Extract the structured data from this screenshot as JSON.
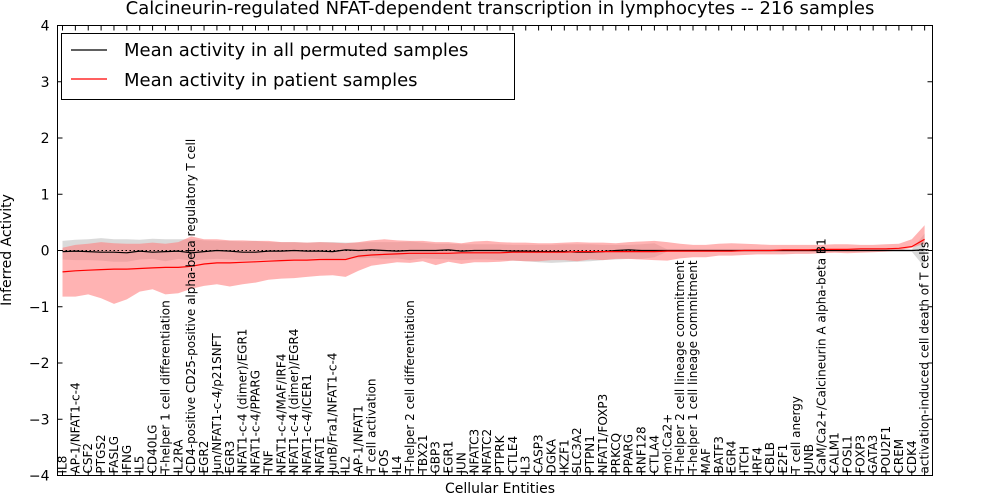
{
  "chart_data": {
    "type": "line",
    "title": "Calcineurin-regulated NFAT-dependent transcription in lymphocytes -- 216 samples",
    "xlabel": "Cellular Entities",
    "ylabel": "Inferred Activity",
    "ylim": [
      -4,
      4
    ],
    "yticks": [
      "4",
      "3",
      "2",
      "1",
      "0",
      "−1",
      "−2",
      "−3",
      "−4"
    ],
    "legend_position": "top-left",
    "colors": {
      "permuted": "#000000",
      "patient": "#ff0000",
      "permuted_band": "#bbbbbb",
      "patient_band": "#ff8080"
    },
    "categories": [
      "IL8",
      "AP-1/NFAT1-c-4",
      "CSF2",
      "PTGS2",
      "FASLG",
      "IFNG",
      "IL5",
      "CD40LG",
      "T-helper 1 cell differentiation",
      "IL2RA",
      "CD4-positive CD25-positive alpha-beta regulatory T cell",
      "EGR2",
      "Jun/NFAT1-c-4/p21SNFT",
      "EGR3",
      "NFAT1-c-4 (dimer)/EGR1",
      "NFAT1-c-4/PPARG",
      "TNF",
      "NFAT1-c-4/MAF/IRF4",
      "NFAT1-c-4 (dimer)/EGR4",
      "NFAT1-c-4/ICER1",
      "NFAT1",
      "JunB/Fra1/NFAT1-c-4",
      "IL2",
      "AP-1/NFAT1",
      "T cell activation",
      "FOS",
      "IL4",
      "T-helper 2 cell differentiation",
      "TBX21",
      "GBP3",
      "EGR1",
      "JUN",
      "NFATC3",
      "NFATC2",
      "PTPRK",
      "CTLE4",
      "IL3",
      "CASP3",
      "DGKA",
      "IKZF1",
      "SLC3A2",
      "PTPN1",
      "NFAT1/FOXP3",
      "PRKCQ",
      "PPARG",
      "RNF128",
      "CTLA4",
      "mol:Ca2+",
      "T-helper 2 cell lineage commitment",
      "T-helper 1 cell lineage commitment",
      "MAF",
      "BATF3",
      "EGR4",
      "ITCH",
      "IRF4",
      "CBLB",
      "E2F1",
      "T cell anergy",
      "JUNB",
      "CaM/Ca2+/Calcineurin A alpha-beta B1",
      "CALM1",
      "FOSL1",
      "FOXP3",
      "GATA3",
      "POU2F1",
      "CREM",
      "CDK4",
      "activation-induced cell death of T cells"
    ],
    "series": [
      {
        "name": "Mean activity in all permuted samples",
        "values": [
          -0.02,
          -0.01,
          -0.02,
          -0.03,
          -0.03,
          -0.04,
          -0.01,
          -0.03,
          -0.02,
          -0.01,
          -0.04,
          -0.02,
          0.0,
          -0.01,
          -0.03,
          -0.03,
          -0.01,
          -0.01,
          0.0,
          -0.01,
          -0.01,
          -0.02,
          0.01,
          0.0,
          0.01,
          0.0,
          -0.01,
          0.0,
          0.0,
          0.0,
          0.01,
          -0.01,
          0.0,
          0.0,
          0.0,
          -0.01,
          -0.01,
          -0.02,
          -0.02,
          -0.02,
          -0.03,
          -0.03,
          -0.02,
          0.0,
          0.01,
          0.0,
          0.0,
          0.0,
          0.0,
          0.0,
          0.0,
          0.0,
          0.0,
          0.0,
          0.0,
          0.0,
          0.0,
          0.0,
          0.0,
          0.0,
          0.0,
          0.0,
          0.0,
          0.0,
          0.0,
          0.0,
          0.0,
          0.01
        ],
        "lower": [
          -0.16,
          -0.17,
          -0.17,
          -0.18,
          -0.2,
          -0.2,
          -0.16,
          -0.15,
          -0.19,
          -0.15,
          -0.18,
          -0.16,
          -0.15,
          -0.16,
          -0.18,
          -0.17,
          -0.16,
          -0.17,
          -0.15,
          -0.15,
          -0.14,
          -0.16,
          -0.14,
          -0.14,
          -0.13,
          -0.15,
          -0.14,
          -0.17,
          -0.14,
          -0.15,
          -0.16,
          -0.17,
          -0.16,
          -0.16,
          -0.17,
          -0.18,
          -0.19,
          -0.21,
          -0.22,
          -0.21,
          -0.2,
          -0.19,
          -0.17,
          -0.16,
          -0.15,
          -0.15,
          -0.12,
          -0.02,
          -0.02,
          -0.02,
          -0.02,
          -0.02,
          -0.02,
          -0.02,
          -0.02,
          -0.02,
          -0.02,
          -0.02,
          -0.02,
          -0.02,
          -0.02,
          -0.02,
          -0.02,
          -0.02,
          -0.02,
          -0.02,
          -0.02,
          -0.3
        ],
        "upper": [
          0.17,
          0.19,
          0.2,
          0.22,
          0.2,
          0.2,
          0.19,
          0.21,
          0.2,
          0.2,
          0.2,
          0.18,
          0.17,
          0.17,
          0.16,
          0.17,
          0.15,
          0.15,
          0.15,
          0.14,
          0.15,
          0.15,
          0.14,
          0.14,
          0.15,
          0.15,
          0.15,
          0.16,
          0.14,
          0.12,
          0.12,
          0.11,
          0.11,
          0.11,
          0.11,
          0.1,
          0.1,
          0.1,
          0.1,
          0.11,
          0.11,
          0.11,
          0.1,
          0.1,
          0.1,
          0.11,
          0.13,
          0.02,
          0.02,
          0.02,
          0.02,
          0.02,
          0.02,
          0.02,
          0.02,
          0.02,
          0.02,
          0.02,
          0.02,
          0.02,
          0.02,
          0.02,
          0.02,
          0.02,
          0.02,
          0.02,
          0.02,
          0.3
        ]
      },
      {
        "name": "Mean activity in patient samples",
        "values": [
          -0.38,
          -0.36,
          -0.35,
          -0.34,
          -0.33,
          -0.33,
          -0.32,
          -0.31,
          -0.3,
          -0.3,
          -0.28,
          -0.24,
          -0.22,
          -0.22,
          -0.21,
          -0.2,
          -0.19,
          -0.18,
          -0.17,
          -0.17,
          -0.16,
          -0.16,
          -0.16,
          -0.1,
          -0.08,
          -0.07,
          -0.06,
          -0.05,
          -0.05,
          -0.05,
          -0.05,
          -0.04,
          -0.04,
          -0.04,
          -0.04,
          -0.03,
          -0.03,
          -0.03,
          -0.03,
          -0.03,
          -0.02,
          -0.02,
          -0.02,
          -0.02,
          -0.02,
          -0.02,
          -0.02,
          -0.01,
          -0.01,
          -0.01,
          -0.01,
          -0.01,
          -0.01,
          0.0,
          0.0,
          0.0,
          0.01,
          0.01,
          0.01,
          0.02,
          0.02,
          0.02,
          0.03,
          0.03,
          0.03,
          0.04,
          0.07,
          0.2
        ],
        "lower": [
          -0.82,
          -0.82,
          -0.78,
          -0.85,
          -0.95,
          -0.87,
          -0.73,
          -0.69,
          -0.78,
          -0.76,
          -0.68,
          -0.63,
          -0.6,
          -0.64,
          -0.6,
          -0.57,
          -0.52,
          -0.5,
          -0.49,
          -0.47,
          -0.45,
          -0.44,
          -0.47,
          -0.36,
          -0.27,
          -0.24,
          -0.21,
          -0.22,
          -0.19,
          -0.26,
          -0.2,
          -0.24,
          -0.21,
          -0.21,
          -0.2,
          -0.18,
          -0.19,
          -0.19,
          -0.17,
          -0.17,
          -0.19,
          -0.16,
          -0.17,
          -0.15,
          -0.15,
          -0.16,
          -0.17,
          -0.18,
          -0.14,
          -0.12,
          -0.12,
          -0.09,
          -0.09,
          -0.08,
          -0.07,
          -0.07,
          -0.07,
          -0.06,
          -0.06,
          -0.05,
          -0.04,
          -0.05,
          -0.04,
          -0.03,
          -0.02,
          0.0,
          0.05,
          0.12
        ],
        "upper": [
          0.05,
          0.1,
          0.12,
          0.15,
          0.13,
          0.12,
          0.12,
          0.14,
          0.12,
          0.15,
          0.25,
          0.2,
          0.2,
          0.18,
          0.18,
          0.17,
          0.17,
          0.15,
          0.15,
          0.14,
          0.15,
          0.14,
          0.13,
          0.15,
          0.18,
          0.2,
          0.18,
          0.17,
          0.17,
          0.15,
          0.15,
          0.13,
          0.16,
          0.17,
          0.15,
          0.14,
          0.14,
          0.13,
          0.13,
          0.14,
          0.15,
          0.14,
          0.14,
          0.13,
          0.15,
          0.16,
          0.17,
          0.15,
          0.12,
          0.1,
          0.1,
          0.12,
          0.13,
          0.12,
          0.11,
          0.1,
          0.1,
          0.1,
          0.1,
          0.1,
          0.11,
          0.11,
          0.1,
          0.1,
          0.11,
          0.12,
          0.2,
          0.45
        ]
      }
    ]
  }
}
